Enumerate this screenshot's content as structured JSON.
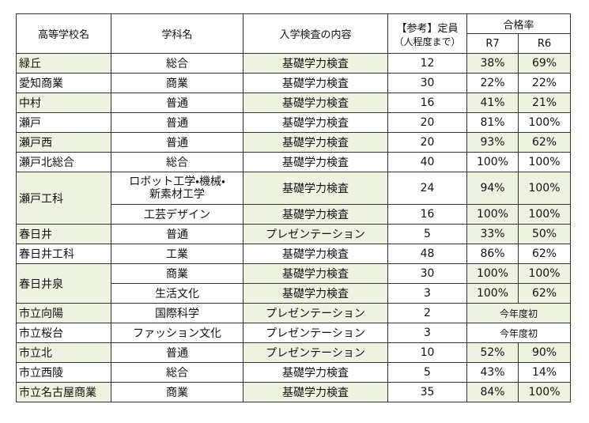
{
  "table": {
    "header": {
      "school": "高等学校名",
      "subject": "学科名",
      "content": "入学検査の内容",
      "capacity": "【参考】定員",
      "capacity_note": "（人程度まで）",
      "pass_rate": "合格率",
      "r7": "R7",
      "r6": "R6"
    },
    "rows": [
      {
        "school": "緑丘",
        "programs": [
          {
            "subject": "総合",
            "content": "基礎学力検査",
            "capacity": 12,
            "r7": "38%",
            "r6": "69%"
          }
        ]
      },
      {
        "school": "愛知商業",
        "programs": [
          {
            "subject": "商業",
            "content": "基礎学力検査",
            "capacity": 30,
            "r7": "22%",
            "r6": "22%"
          }
        ]
      },
      {
        "school": "中村",
        "programs": [
          {
            "subject": "普通",
            "content": "基礎学力検査",
            "capacity": 16,
            "r7": "41%",
            "r6": "21%"
          }
        ]
      },
      {
        "school": "瀬戸",
        "programs": [
          {
            "subject": "普通",
            "content": "基礎学力検査",
            "capacity": 20,
            "r7": "81%",
            "r6": "100%"
          }
        ]
      },
      {
        "school": "瀬戸西",
        "programs": [
          {
            "subject": "普通",
            "content": "基礎学力検査",
            "capacity": 20,
            "r7": "93%",
            "r6": "62%"
          }
        ]
      },
      {
        "school": "瀬戸北総合",
        "programs": [
          {
            "subject": "総合",
            "content": "基礎学力検査",
            "capacity": 40,
            "r7": "100%",
            "r6": "100%"
          }
        ]
      },
      {
        "school": "瀬戸工科",
        "programs": [
          {
            "subject": "ロボット工学・機械・\n新素材工学",
            "content": "基礎学力検査",
            "capacity": 24,
            "r7": "94%",
            "r6": "100%"
          },
          {
            "subject": "工芸デザイン",
            "content": "基礎学力検査",
            "capacity": 16,
            "r7": "100%",
            "r6": "100%"
          }
        ]
      },
      {
        "school": "春日井",
        "programs": [
          {
            "subject": "普通",
            "content": "プレゼンテーション",
            "capacity": 5,
            "r7": "33%",
            "r6": "50%"
          }
        ]
      },
      {
        "school": "春日井工科",
        "programs": [
          {
            "subject": "工業",
            "content": "基礎学力検査",
            "capacity": 48,
            "r7": "86%",
            "r6": "62%"
          }
        ]
      },
      {
        "school": "春日井泉",
        "programs": [
          {
            "subject": "商業",
            "content": "基礎学力検査",
            "capacity": 30,
            "r7": "100%",
            "r6": "100%"
          },
          {
            "subject": "生活文化",
            "content": "基礎学力検査",
            "capacity": 3,
            "r7": "100%",
            "r6": "62%"
          }
        ]
      },
      {
        "school": "市立向陽",
        "programs": [
          {
            "subject": "国際科学",
            "content": "プレゼンテーション",
            "capacity": 2,
            "note": "今年度初"
          }
        ]
      },
      {
        "school": "市立桜台",
        "programs": [
          {
            "subject": "ファッション文化",
            "content": "プレゼンテーション",
            "capacity": 3,
            "note": "今年度初"
          }
        ]
      },
      {
        "school": "市立北",
        "programs": [
          {
            "subject": "普通",
            "content": "プレゼンテーション",
            "capacity": 10,
            "r7": "52%",
            "r6": "90%"
          }
        ]
      },
      {
        "school": "市立西陵",
        "programs": [
          {
            "subject": "総合",
            "content": "基礎学力検査",
            "capacity": 5,
            "r7": "43%",
            "r6": "14%"
          }
        ]
      },
      {
        "school": "市立名古屋商業",
        "programs": [
          {
            "subject": "商業",
            "content": "基礎学力検査",
            "capacity": 35,
            "r7": "84%",
            "r6": "100%"
          }
        ]
      }
    ]
  }
}
